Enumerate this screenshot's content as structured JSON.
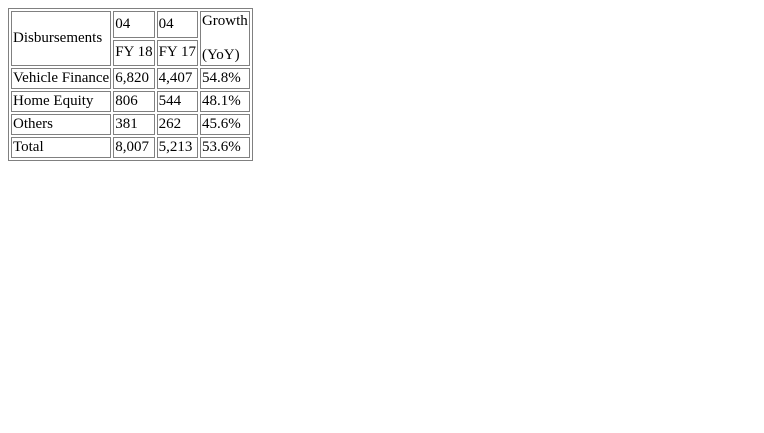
{
  "table": {
    "corner_label": "Disbursements",
    "headers": {
      "q4_fy18_top": "04",
      "q4_fy18_bottom": "FY 18",
      "q4_fy17_top": "04",
      "q4_fy17_bottom": "FY 17",
      "growth_line1": "Growth",
      "growth_line2": "(YoY)"
    },
    "rows": [
      {
        "label": "Vehicle Finance",
        "fy18": "6,820",
        "fy17": "4,407",
        "growth": "54.8%"
      },
      {
        "label": "Home Equity",
        "fy18": "806",
        "fy17": "544",
        "growth": "48.1%"
      },
      {
        "label": "Others",
        "fy18": "381",
        "fy17": "262",
        "growth": "45.6%"
      },
      {
        "label": "Total",
        "fy18": "8,007",
        "fy17": "5,213",
        "growth": "53.6%"
      }
    ]
  }
}
